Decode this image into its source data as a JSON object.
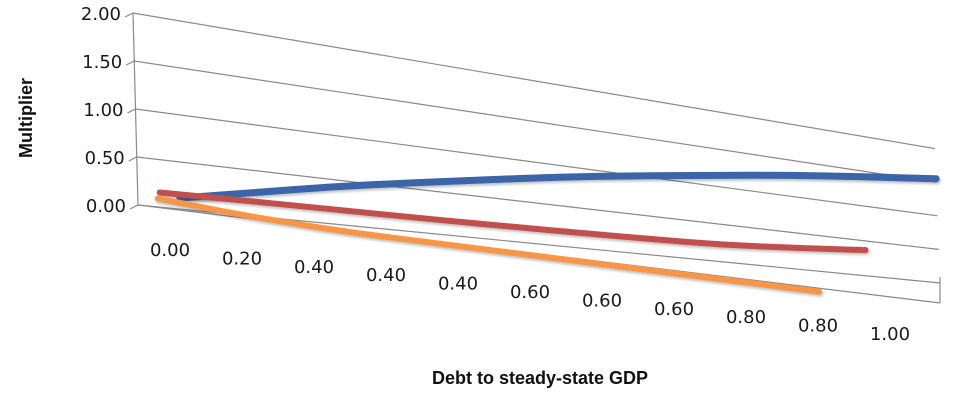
{
  "chart_data": {
    "type": "line",
    "title": "",
    "xlabel": "Debt to steady-state GDP",
    "ylabel": "Multiplier",
    "ylim": [
      0,
      2
    ],
    "yticks": [
      "0.00",
      "0.50",
      "1.00",
      "1.50",
      "2.00"
    ],
    "categories": [
      "0.00",
      "0.20",
      "0.40",
      "0.40",
      "0.40",
      "0.60",
      "0.60",
      "0.60",
      "0.80",
      "0.80",
      "1.00"
    ],
    "grid": true,
    "legend": "none",
    "perspective": "3d",
    "series": [
      {
        "color": "#3a65a8",
        "values": [
          0.02,
          0.17,
          0.33,
          0.48,
          0.63,
          0.79,
          0.94,
          1.09,
          1.25,
          1.4,
          1.55
        ]
      },
      {
        "color": "#c0504d",
        "values": [
          0.12,
          0.14,
          0.16,
          0.18,
          0.2,
          0.23,
          0.26,
          0.3,
          0.35,
          0.44,
          0.55
        ]
      },
      {
        "color": "#f79646",
        "values": [
          0.12,
          0.07,
          0.04,
          0.02,
          0.02,
          0.02,
          0.02,
          0.02,
          0.02,
          0.02,
          0.02
        ]
      }
    ]
  }
}
